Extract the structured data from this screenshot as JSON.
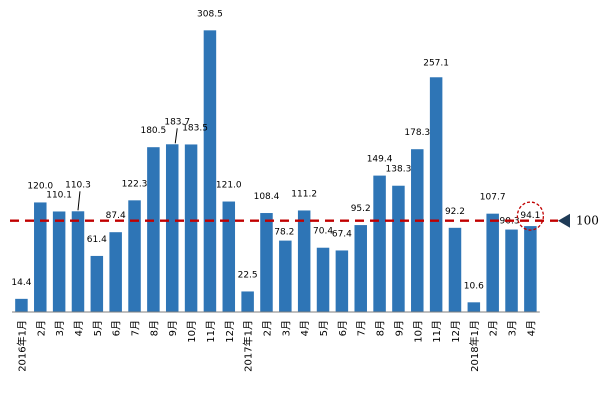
{
  "chart_data": {
    "type": "bar",
    "title": "",
    "xlabel": "",
    "ylabel": "",
    "ylim": [
      0,
      330
    ],
    "grid": false,
    "categories": [
      "2016年1月",
      "2月",
      "3月",
      "4月",
      "5月",
      "6月",
      "7月",
      "8月",
      "9月",
      "10月",
      "11月",
      "12月",
      "2017年1月",
      "2月",
      "3月",
      "4月",
      "5月",
      "6月",
      "7月",
      "8月",
      "9月",
      "10月",
      "11月",
      "12月",
      "2018年1月",
      "2月",
      "3月",
      "4月"
    ],
    "values": [
      14.4,
      120.0,
      110.1,
      110.3,
      61.4,
      87.4,
      122.3,
      180.5,
      183.7,
      183.5,
      308.5,
      121.0,
      22.5,
      108.4,
      78.2,
      111.2,
      70.4,
      67.4,
      95.2,
      149.4,
      138.3,
      178.3,
      257.1,
      92.2,
      10.6,
      107.7,
      90.3,
      94.1
    ],
    "value_labels": [
      "14.4",
      "120.0",
      "110.1",
      "110.3",
      "61.4",
      "87.4",
      "122.3",
      "180.5",
      "183.7",
      "183.5",
      "308.5",
      "121.0",
      "22.5",
      "108.4",
      "78.2",
      "111.2",
      "70.4",
      "67.4",
      "95.2",
      "149.4",
      "138.3",
      "178.3",
      "257.1",
      "92.2",
      "10.6",
      "107.7",
      "90.3",
      "94.1"
    ],
    "reference_line": {
      "value": 100,
      "label": "100",
      "color": "#c00000"
    },
    "highlight_index": 27,
    "colors": {
      "bar": "#2e75b6",
      "reference": "#c00000",
      "marker": "#1f3b57"
    }
  }
}
